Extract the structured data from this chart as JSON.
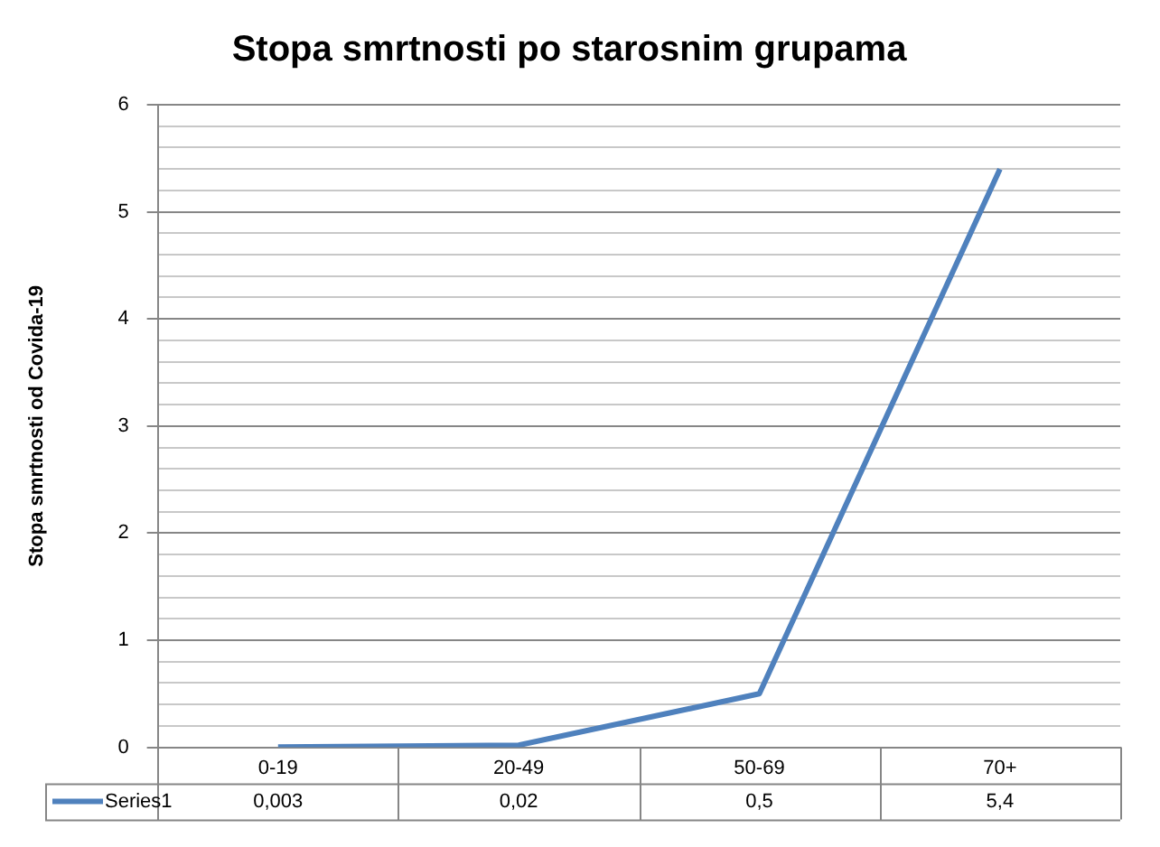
{
  "chart_data": {
    "type": "line",
    "title": "Stopa smrtnosti po starosnim grupama",
    "ylabel": "Stopa smrtnosti od Covida-19",
    "categories": [
      "0-19",
      "20-49",
      "50-69",
      "70+"
    ],
    "series": [
      {
        "name": "Series1",
        "color": "#4f81bd",
        "values": [
          0.003,
          0.02,
          0.5,
          5.4
        ],
        "value_labels": [
          "0,003",
          "0,02",
          "0,5",
          "5,4"
        ]
      }
    ],
    "ylim": [
      0,
      6
    ],
    "yticks": [
      0,
      {
        "value": 0.2,
        "label": null
      },
      {
        "value": 0.4,
        "label": null
      },
      {
        "value": 0.6,
        "label": null
      },
      {
        "value": 0.8,
        "label": null
      },
      1,
      {
        "value": 1.2,
        "label": null
      },
      {
        "value": 1.4,
        "label": null
      },
      {
        "value": 1.6,
        "label": null
      },
      {
        "value": 1.8,
        "label": null
      },
      2,
      {
        "value": 2.2,
        "label": null
      },
      {
        "value": 2.4,
        "label": null
      },
      {
        "value": 2.6,
        "label": null
      },
      {
        "value": 2.8,
        "label": null
      },
      3,
      {
        "value": 3.2,
        "label": null
      },
      {
        "value": 3.4,
        "label": null
      },
      {
        "value": 3.6,
        "label": null
      },
      {
        "value": 3.8,
        "label": null
      },
      4,
      {
        "value": 4.2,
        "label": null
      },
      {
        "value": 4.4,
        "label": null
      },
      {
        "value": 4.6,
        "label": null
      },
      {
        "value": 4.8,
        "label": null
      },
      5,
      {
        "value": 5.2,
        "label": null
      },
      {
        "value": 5.4,
        "label": null
      },
      {
        "value": 5.6,
        "label": null
      },
      {
        "value": 5.8,
        "label": null
      },
      6
    ],
    "grid": true,
    "legend": "bottom",
    "marker": "none",
    "line_style": "solid"
  }
}
